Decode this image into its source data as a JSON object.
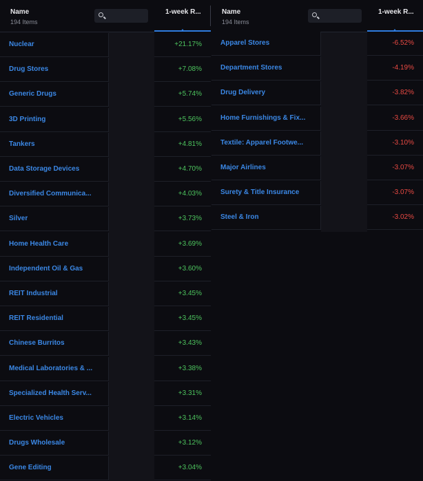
{
  "left": {
    "name_header": "Name",
    "item_count": "194 Items",
    "value_header": "1-week R...",
    "rows": [
      {
        "name": "Nuclear",
        "value": "+21.17%"
      },
      {
        "name": "Drug Stores",
        "value": "+7.08%"
      },
      {
        "name": "Generic Drugs",
        "value": "+5.74%"
      },
      {
        "name": "3D Printing",
        "value": "+5.56%"
      },
      {
        "name": "Tankers",
        "value": "+4.81%"
      },
      {
        "name": "Data Storage Devices",
        "value": "+4.70%"
      },
      {
        "name": "Diversified Communica...",
        "value": "+4.03%"
      },
      {
        "name": "Silver",
        "value": "+3.73%"
      },
      {
        "name": "Home Health Care",
        "value": "+3.69%"
      },
      {
        "name": "Independent Oil & Gas",
        "value": "+3.60%"
      },
      {
        "name": "REIT Industrial",
        "value": "+3.45%"
      },
      {
        "name": "REIT Residential",
        "value": "+3.45%"
      },
      {
        "name": "Chinese Burritos",
        "value": "+3.43%"
      },
      {
        "name": "Medical Laboratories & ...",
        "value": "+3.38%"
      },
      {
        "name": "Specialized Health Serv...",
        "value": "+3.31%"
      },
      {
        "name": "Electric Vehicles",
        "value": "+3.14%"
      },
      {
        "name": "Drugs Wholesale",
        "value": "+3.12%"
      },
      {
        "name": "Gene Editing",
        "value": "+3.04%"
      }
    ]
  },
  "right": {
    "name_header": "Name",
    "item_count": "194 Items",
    "value_header": "1-week R...",
    "rows": [
      {
        "name": "Apparel Stores",
        "value": "-6.52%"
      },
      {
        "name": "Department Stores",
        "value": "-4.19%"
      },
      {
        "name": "Drug Delivery",
        "value": "-3.82%"
      },
      {
        "name": "Home Furnishings & Fix...",
        "value": "-3.66%"
      },
      {
        "name": "Textile: Apparel Footwe...",
        "value": "-3.10%"
      },
      {
        "name": "Major Airlines",
        "value": "-3.07%"
      },
      {
        "name": "Surety & Title Insurance",
        "value": "-3.07%"
      },
      {
        "name": "Steel & Iron",
        "value": "-3.02%"
      }
    ]
  },
  "colors": {
    "link_blue": "#3b88e6",
    "positive_green": "#4dc45e",
    "negative_red": "#ea4a43",
    "accent_blue": "#2f7de0"
  },
  "icons": {
    "search": "search-icon",
    "sort": "sort-descending-icon"
  }
}
